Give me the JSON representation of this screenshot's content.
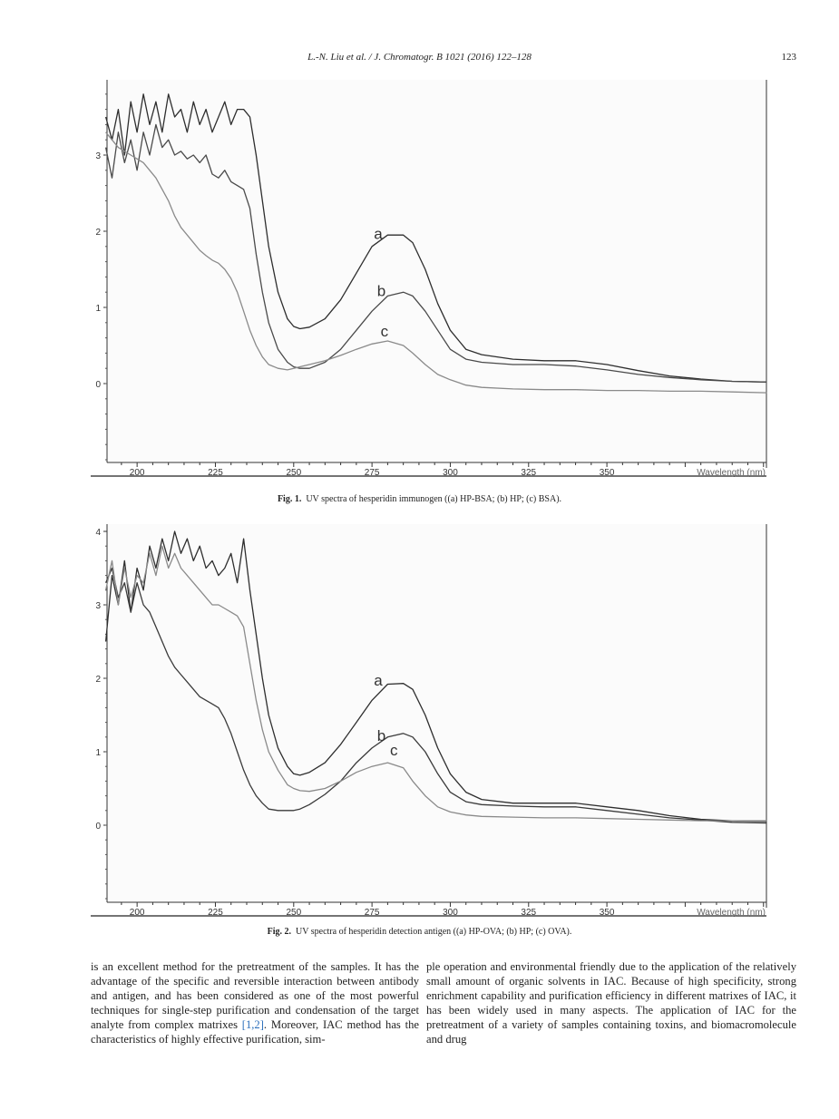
{
  "header": {
    "running_title": "L.-N. Liu et al. / J. Chromatogr. B 1021 (2016) 122–128",
    "page_number": "123"
  },
  "figures": [
    {
      "label": "Fig. 1.",
      "caption": "UV spectra of hesperidin immunogen ((a) HP-BSA; (b) HP; (c) BSA)."
    },
    {
      "label": "Fig. 2.",
      "caption": "UV spectra of hesperidin detection antigen ((a) HP-OVA; (b) HP; (c) OVA)."
    }
  ],
  "body": {
    "left_text_1": "is an excellent method for the pretreatment of the samples. It has the advantage of the specific and reversible interaction between antibody and antigen, and has been considered as one of the most powerful techniques for single-step purification and condensation of the target analyte from complex matrixes ",
    "left_ref": "[1,2]",
    "left_text_2": ". Moreover, IAC method has the characteristics of highly effective purification, sim-",
    "right_text": "ple operation and environmental friendly due to the application of the relatively small amount of organic solvents in IAC. Because of high specificity, strong enrichment capability and purification efficiency in different matrixes of IAC, it has been widely used in many aspects. The application of IAC for the pretreatment of a variety of samples containing toxins, and biomacromolecule and drug"
  },
  "chart_data": [
    {
      "type": "line",
      "title": "",
      "xlabel": "Wavelength (nm)",
      "ylabel": "",
      "xlim": [
        190,
        401
      ],
      "ylim": [
        -1,
        4
      ],
      "xticks": [
        200,
        225,
        250,
        275,
        300,
        325,
        350
      ],
      "yticks": [
        0,
        1,
        2,
        3
      ],
      "x": [
        190,
        192,
        194,
        196,
        198,
        200,
        202,
        204,
        206,
        208,
        210,
        212,
        214,
        216,
        218,
        220,
        222,
        224,
        226,
        228,
        230,
        232,
        234,
        236,
        238,
        240,
        242,
        245,
        248,
        250,
        252,
        255,
        260,
        265,
        270,
        275,
        280,
        285,
        288,
        292,
        296,
        300,
        305,
        310,
        320,
        330,
        340,
        350,
        360,
        370,
        380,
        390,
        401
      ],
      "series": [
        {
          "name": "a",
          "color": "#2e2e2e",
          "label_at": [
            277,
            1.9
          ],
          "values": [
            3.5,
            3.2,
            3.6,
            3.0,
            3.7,
            3.3,
            3.8,
            3.4,
            3.7,
            3.3,
            3.8,
            3.5,
            3.6,
            3.3,
            3.7,
            3.4,
            3.6,
            3.3,
            3.5,
            3.7,
            3.4,
            3.6,
            3.6,
            3.5,
            3.0,
            2.4,
            1.8,
            1.2,
            0.85,
            0.75,
            0.72,
            0.74,
            0.85,
            1.1,
            1.45,
            1.8,
            1.95,
            1.95,
            1.85,
            1.5,
            1.05,
            0.7,
            0.45,
            0.38,
            0.32,
            0.3,
            0.3,
            0.25,
            0.17,
            0.1,
            0.06,
            0.03,
            0.02
          ]
        },
        {
          "name": "b",
          "color": "#4a4a4a",
          "label_at": [
            278,
            1.15
          ],
          "values": [
            3.1,
            2.7,
            3.3,
            2.9,
            3.2,
            2.8,
            3.3,
            3.0,
            3.4,
            3.1,
            3.2,
            3.0,
            3.05,
            2.95,
            3.0,
            2.9,
            3.0,
            2.75,
            2.7,
            2.8,
            2.65,
            2.6,
            2.55,
            2.3,
            1.7,
            1.2,
            0.8,
            0.45,
            0.28,
            0.22,
            0.2,
            0.2,
            0.28,
            0.45,
            0.7,
            0.95,
            1.15,
            1.2,
            1.15,
            0.95,
            0.7,
            0.45,
            0.32,
            0.28,
            0.25,
            0.25,
            0.23,
            0.18,
            0.12,
            0.08,
            0.05,
            0.03,
            0.02
          ]
        },
        {
          "name": "c",
          "color": "#8a8a8a",
          "label_at": [
            279,
            0.62
          ],
          "values": [
            3.3,
            3.2,
            3.1,
            3.05,
            3.0,
            2.95,
            2.9,
            2.8,
            2.7,
            2.55,
            2.4,
            2.2,
            2.05,
            1.95,
            1.85,
            1.75,
            1.68,
            1.62,
            1.58,
            1.5,
            1.38,
            1.2,
            0.95,
            0.7,
            0.5,
            0.35,
            0.25,
            0.2,
            0.18,
            0.2,
            0.22,
            0.25,
            0.3,
            0.37,
            0.45,
            0.52,
            0.56,
            0.5,
            0.4,
            0.25,
            0.12,
            0.05,
            -0.02,
            -0.05,
            -0.07,
            -0.08,
            -0.08,
            -0.09,
            -0.09,
            -0.1,
            -0.1,
            -0.11,
            -0.12
          ]
        }
      ]
    },
    {
      "type": "line",
      "title": "",
      "xlabel": "Wavelength (nm)",
      "ylabel": "",
      "xlim": [
        190,
        401
      ],
      "ylim": [
        -1,
        4
      ],
      "xticks": [
        200,
        225,
        250,
        275,
        300,
        325,
        350
      ],
      "yticks": [
        0,
        1,
        2,
        3,
        4
      ],
      "x": [
        190,
        192,
        194,
        196,
        198,
        200,
        202,
        204,
        206,
        208,
        210,
        212,
        214,
        216,
        218,
        220,
        222,
        224,
        226,
        228,
        230,
        232,
        234,
        236,
        238,
        240,
        242,
        245,
        248,
        250,
        252,
        255,
        260,
        265,
        270,
        275,
        280,
        285,
        288,
        292,
        296,
        300,
        305,
        310,
        320,
        330,
        340,
        350,
        360,
        370,
        380,
        390,
        401
      ],
      "series": [
        {
          "name": "a",
          "color": "#2e2e2e",
          "label_at": [
            277,
            1.9
          ],
          "values": [
            2.5,
            3.4,
            3.0,
            3.6,
            2.9,
            3.5,
            3.2,
            3.8,
            3.5,
            3.9,
            3.6,
            4.0,
            3.7,
            3.9,
            3.6,
            3.8,
            3.5,
            3.6,
            3.4,
            3.5,
            3.7,
            3.3,
            3.9,
            3.2,
            2.6,
            2.0,
            1.5,
            1.05,
            0.8,
            0.7,
            0.68,
            0.72,
            0.85,
            1.1,
            1.4,
            1.7,
            1.92,
            1.93,
            1.85,
            1.5,
            1.05,
            0.7,
            0.45,
            0.35,
            0.3,
            0.3,
            0.3,
            0.25,
            0.2,
            0.13,
            0.08,
            0.06,
            0.05
          ]
        },
        {
          "name": "b",
          "color": "#3a3a3a",
          "label_at": [
            278,
            1.15
          ],
          "values": [
            3.3,
            3.5,
            3.1,
            3.3,
            2.9,
            3.3,
            3.0,
            2.9,
            2.7,
            2.5,
            2.3,
            2.15,
            2.05,
            1.95,
            1.85,
            1.75,
            1.7,
            1.65,
            1.6,
            1.45,
            1.25,
            1.0,
            0.75,
            0.55,
            0.4,
            0.3,
            0.22,
            0.2,
            0.2,
            0.2,
            0.22,
            0.28,
            0.42,
            0.6,
            0.85,
            1.05,
            1.2,
            1.25,
            1.2,
            1.0,
            0.7,
            0.45,
            0.32,
            0.28,
            0.26,
            0.25,
            0.25,
            0.2,
            0.15,
            0.1,
            0.07,
            0.04,
            0.03
          ]
        },
        {
          "name": "c",
          "color": "#8a8a8a",
          "label_at": [
            282,
            0.95
          ],
          "values": [
            3.2,
            3.6,
            3.0,
            3.5,
            3.1,
            3.4,
            3.3,
            3.7,
            3.4,
            3.8,
            3.5,
            3.7,
            3.5,
            3.4,
            3.3,
            3.2,
            3.1,
            3.0,
            3.0,
            2.95,
            2.9,
            2.85,
            2.7,
            2.2,
            1.7,
            1.3,
            1.0,
            0.75,
            0.55,
            0.5,
            0.47,
            0.46,
            0.5,
            0.6,
            0.72,
            0.8,
            0.85,
            0.78,
            0.6,
            0.4,
            0.25,
            0.18,
            0.14,
            0.12,
            0.11,
            0.1,
            0.1,
            0.09,
            0.08,
            0.07,
            0.06,
            0.06,
            0.06
          ]
        }
      ]
    }
  ]
}
